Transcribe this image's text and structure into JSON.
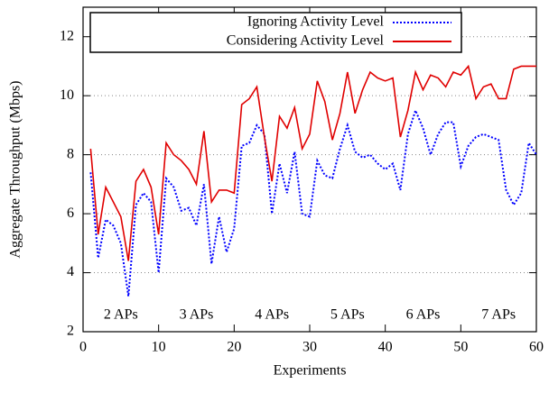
{
  "chart_data": {
    "type": "line",
    "x_label": "Experiments",
    "y_label": "Aggregate Throughput (Mbps)",
    "x": [
      1,
      2,
      3,
      4,
      5,
      6,
      7,
      8,
      9,
      10,
      11,
      12,
      13,
      14,
      15,
      16,
      17,
      18,
      19,
      20,
      21,
      22,
      23,
      24,
      25,
      26,
      27,
      28,
      29,
      30,
      31,
      32,
      33,
      34,
      35,
      36,
      37,
      38,
      39,
      40,
      41,
      42,
      43,
      44,
      45,
      46,
      47,
      48,
      49,
      50,
      51,
      52,
      53,
      54,
      55,
      56,
      57,
      58,
      59,
      60
    ],
    "series": [
      {
        "name": "Ignoring Activity Level",
        "color": "#0000ff",
        "style": "dotted",
        "values": [
          7.4,
          4.5,
          5.8,
          5.6,
          5.0,
          3.2,
          6.3,
          6.7,
          6.4,
          4.0,
          7.2,
          6.9,
          6.1,
          6.2,
          5.6,
          7.0,
          4.3,
          5.9,
          4.7,
          5.5,
          8.3,
          8.4,
          9.0,
          8.7,
          6.0,
          7.7,
          6.7,
          8.1,
          6.0,
          5.9,
          7.8,
          7.3,
          7.2,
          8.2,
          9.0,
          8.1,
          7.9,
          8.0,
          7.7,
          7.5,
          7.7,
          6.8,
          8.7,
          9.5,
          8.9,
          8.0,
          8.7,
          9.1,
          9.1,
          7.6,
          8.3,
          8.6,
          8.7,
          8.6,
          8.5,
          6.8,
          6.3,
          6.7,
          8.4,
          8.0
        ]
      },
      {
        "name": "Considering Activity Level",
        "color": "#e00000",
        "style": "solid",
        "values": [
          8.2,
          5.3,
          6.9,
          6.4,
          5.9,
          4.4,
          7.1,
          7.5,
          6.9,
          5.3,
          8.4,
          8.0,
          7.8,
          7.5,
          7.0,
          8.8,
          6.4,
          6.8,
          6.8,
          6.7,
          9.7,
          9.9,
          10.3,
          8.6,
          7.1,
          9.3,
          8.9,
          9.6,
          8.2,
          8.7,
          10.5,
          9.8,
          8.5,
          9.4,
          10.8,
          9.4,
          10.2,
          10.8,
          10.6,
          10.5,
          10.6,
          8.6,
          9.5,
          10.8,
          10.2,
          10.7,
          10.6,
          10.3,
          10.8,
          10.7,
          11.0,
          9.9,
          10.3,
          10.4,
          9.9,
          9.9,
          10.9,
          11.0,
          11.0,
          11.0
        ]
      }
    ],
    "annotations": [
      {
        "text": "2 APs",
        "x": 5
      },
      {
        "text": "3 APs",
        "x": 15
      },
      {
        "text": "4 APs",
        "x": 25
      },
      {
        "text": "5 APs",
        "x": 35
      },
      {
        "text": "6 APs",
        "x": 45
      },
      {
        "text": "7 APs",
        "x": 55
      }
    ],
    "xlim": [
      0,
      60
    ],
    "xticks": [
      0,
      10,
      20,
      30,
      40,
      50,
      60
    ],
    "ylim": [
      2,
      13
    ],
    "yticks": [
      2,
      4,
      6,
      8,
      10,
      12
    ],
    "grid": true,
    "legend": "top"
  }
}
